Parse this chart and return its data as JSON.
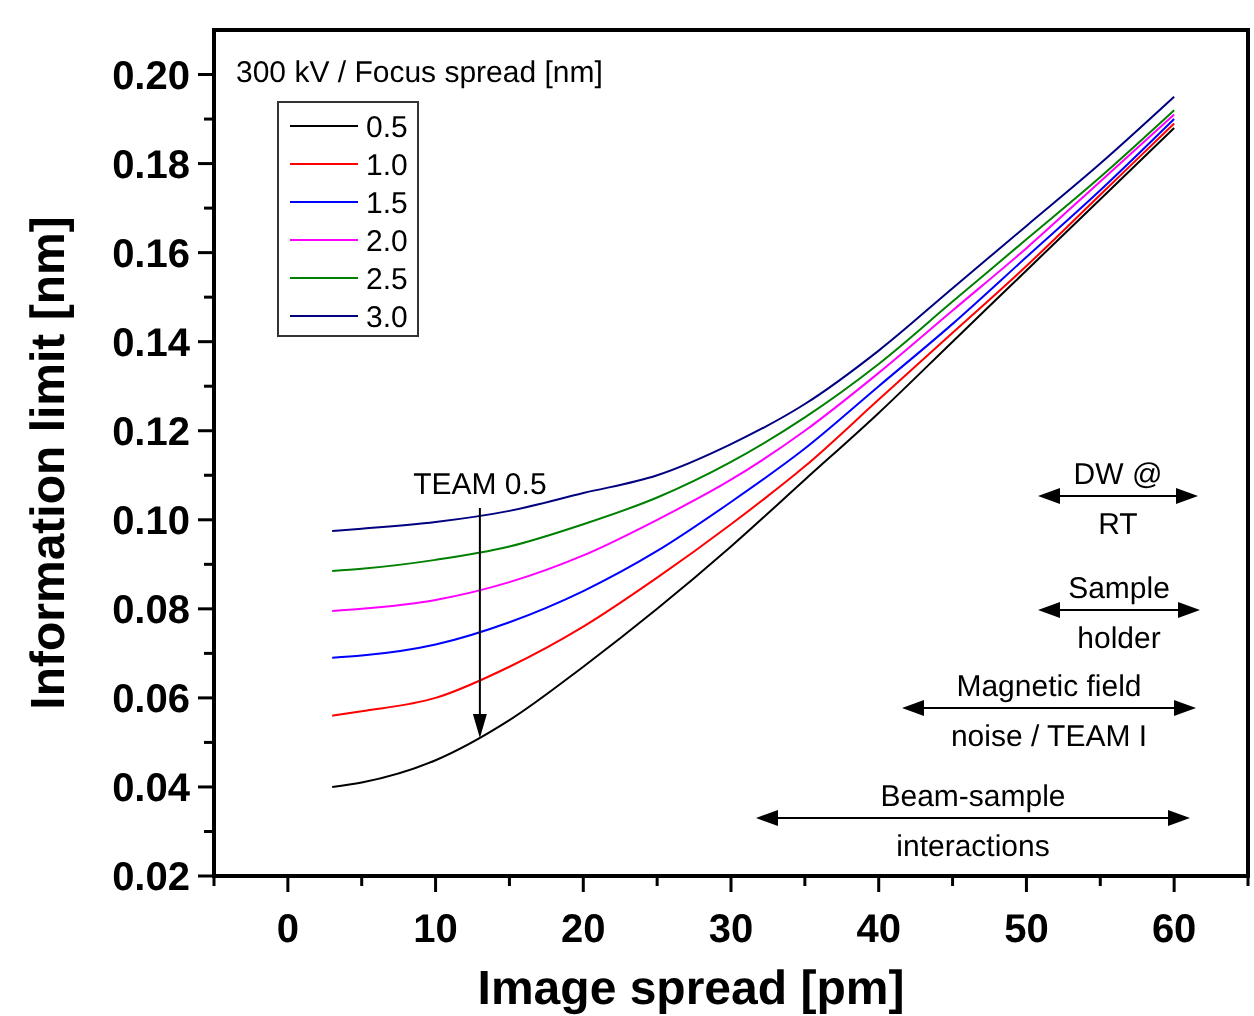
{
  "chart_data": {
    "type": "line",
    "xlabel": "Image spread [pm]",
    "ylabel": "Information limit [nm]",
    "legend_title": "300 kV / Focus spread [nm]",
    "legend": "top left",
    "marker": "none",
    "line_style": "solid",
    "grid": false,
    "x": [
      3,
      5,
      10,
      15,
      20,
      25,
      30,
      35,
      40,
      45,
      50,
      55,
      60
    ],
    "xlim": [
      -5,
      65
    ],
    "ylim": [
      0.02,
      0.21
    ],
    "xticks": [
      {
        "value": -5,
        "label": null
      },
      0,
      {
        "value": 5,
        "label": null
      },
      10,
      {
        "value": 15,
        "label": null
      },
      20,
      {
        "value": 25,
        "label": null
      },
      30,
      {
        "value": 35,
        "label": null
      },
      40,
      {
        "value": 45,
        "label": null
      },
      50,
      {
        "value": 55,
        "label": null
      },
      60,
      {
        "value": 65,
        "label": null
      }
    ],
    "yticks": [
      0.02,
      {
        "value": 0.03,
        "label": null
      },
      0.04,
      {
        "value": 0.05,
        "label": null
      },
      0.06,
      {
        "value": 0.07,
        "label": null
      },
      0.08,
      {
        "value": 0.09,
        "label": null
      },
      {
        "value": 0.1,
        "label": "0.10"
      },
      {
        "value": 0.11,
        "label": null
      },
      0.12,
      {
        "value": 0.13,
        "label": null
      },
      0.14,
      {
        "value": 0.15,
        "label": null
      },
      0.16,
      {
        "value": 0.17,
        "label": null
      },
      0.18,
      {
        "value": 0.19,
        "label": null
      },
      {
        "value": 0.2,
        "label": "0.20"
      }
    ],
    "series": [
      {
        "name": "0.5",
        "color": "#000000",
        "values": [
          0.04,
          0.041,
          0.046,
          0.055,
          0.067,
          0.08,
          0.094,
          0.109,
          0.124,
          0.14,
          0.156,
          0.172,
          0.188
        ]
      },
      {
        "name": "1.0",
        "color": "#ff0000",
        "values": [
          0.056,
          0.057,
          0.06,
          0.067,
          0.076,
          0.087,
          0.099,
          0.112,
          0.127,
          0.142,
          0.157,
          0.173,
          0.189
        ]
      },
      {
        "name": "1.5",
        "color": "#0000ff",
        "values": [
          0.069,
          0.0695,
          0.072,
          0.077,
          0.084,
          0.093,
          0.104,
          0.116,
          0.13,
          0.144,
          0.159,
          0.174,
          0.19
        ]
      },
      {
        "name": "2.0",
        "color": "#ff00ff",
        "values": [
          0.0795,
          0.08,
          0.082,
          0.086,
          0.092,
          0.1,
          0.109,
          0.12,
          0.133,
          0.147,
          0.161,
          0.176,
          0.191
        ]
      },
      {
        "name": "2.5",
        "color": "#008000",
        "values": [
          0.0885,
          0.089,
          0.091,
          0.094,
          0.099,
          0.105,
          0.113,
          0.123,
          0.135,
          0.149,
          0.163,
          0.177,
          0.192
        ]
      },
      {
        "name": "3.0",
        "color": "#000080",
        "values": [
          0.0975,
          0.098,
          0.0995,
          0.102,
          0.106,
          0.11,
          0.117,
          0.126,
          0.138,
          0.152,
          0.166,
          0.18,
          0.195
        ]
      }
    ],
    "annotations": [
      {
        "text": "TEAM 0.5",
        "x": 13,
        "y": 0.051
      },
      "DW @\nRT",
      "Sample\nholder",
      "Magnetic field\nnoise / TEAM I",
      "Beam-sample\ninteractions"
    ]
  }
}
